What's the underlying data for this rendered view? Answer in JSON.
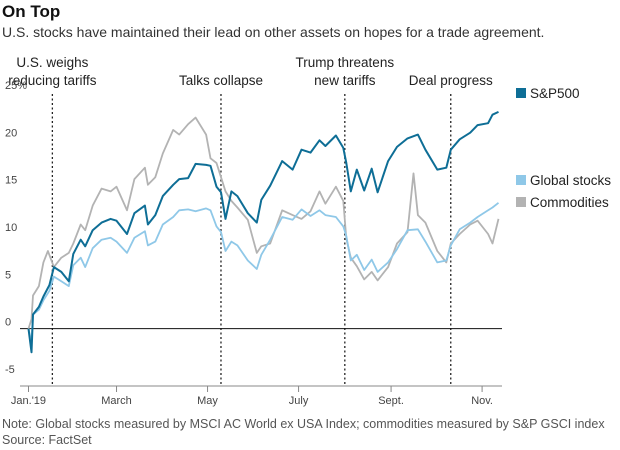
{
  "header": {
    "title": "On Top",
    "subtitle": "U.S. stocks have maintained their lead on other assets on hopes for a trade agreement."
  },
  "footer": {
    "note": "Note: Global stocks measured by MSCI AC World ex USA Index; commodities measured by S&P GSCI index",
    "source": "Source: FactSet"
  },
  "chart_data": {
    "type": "line",
    "ylabel": "",
    "xlabel": "",
    "y_unit": "%",
    "ylim": [
      -5,
      25
    ],
    "yticks": [
      -5,
      0,
      5,
      10,
      15,
      20,
      25
    ],
    "ytick_labels": [
      "-5",
      "0",
      "5",
      "10",
      "15",
      "20",
      "25%"
    ],
    "xlim": [
      "2018-12-31",
      "2019-11-13"
    ],
    "xticks": [
      {
        "date": "2019-01-01",
        "label": "Jan.'19"
      },
      {
        "date": "2019-03-01",
        "label": "March"
      },
      {
        "date": "2019-05-01",
        "label": "May"
      },
      {
        "date": "2019-07-01",
        "label": "July"
      },
      {
        "date": "2019-09-01",
        "label": "Sept."
      },
      {
        "date": "2019-11-01",
        "label": "Nov."
      }
    ],
    "grid": false,
    "zero_line": true,
    "annotations": [
      {
        "date": "2019-01-17",
        "lines": [
          "U.S. weighs",
          "reducing tariffs"
        ]
      },
      {
        "date": "2019-05-10",
        "lines": [
          "Talks collapse"
        ]
      },
      {
        "date": "2019-08-01",
        "lines": [
          "Trump threatens",
          "new tariffs"
        ]
      },
      {
        "date": "2019-10-11",
        "lines": [
          "Deal progress"
        ]
      }
    ],
    "legend_placement": "right",
    "series": [
      {
        "name": "S&P500",
        "color": "#0e6e96",
        "points": [
          [
            "2019-01-01",
            0
          ],
          [
            "2019-01-03",
            -2.5
          ],
          [
            "2019-01-04",
            1.5
          ],
          [
            "2019-01-08",
            2.3
          ],
          [
            "2019-01-11",
            3.4
          ],
          [
            "2019-01-15",
            4.6
          ],
          [
            "2019-01-18",
            6.5
          ],
          [
            "2019-01-23",
            6.0
          ],
          [
            "2019-01-28",
            5.0
          ],
          [
            "2019-01-31",
            7.9
          ],
          [
            "2019-02-05",
            9.4
          ],
          [
            "2019-02-08",
            8.7
          ],
          [
            "2019-02-13",
            10.4
          ],
          [
            "2019-02-19",
            11.2
          ],
          [
            "2019-02-25",
            11.6
          ],
          [
            "2019-03-01",
            11.4
          ],
          [
            "2019-03-08",
            10.0
          ],
          [
            "2019-03-13",
            12.2
          ],
          [
            "2019-03-20",
            13.0
          ],
          [
            "2019-03-22",
            11.0
          ],
          [
            "2019-03-27",
            12.0
          ],
          [
            "2019-04-01",
            14.0
          ],
          [
            "2019-04-08",
            15.2
          ],
          [
            "2019-04-12",
            15.8
          ],
          [
            "2019-04-18",
            15.9
          ],
          [
            "2019-04-23",
            17.4
          ],
          [
            "2019-04-30",
            17.3
          ],
          [
            "2019-05-03",
            17.2
          ],
          [
            "2019-05-07",
            15.0
          ],
          [
            "2019-05-10",
            14.4
          ],
          [
            "2019-05-13",
            11.6
          ],
          [
            "2019-05-17",
            14.5
          ],
          [
            "2019-05-21",
            14.0
          ],
          [
            "2019-05-28",
            12.2
          ],
          [
            "2019-06-03",
            11.2
          ],
          [
            "2019-06-06",
            13.6
          ],
          [
            "2019-06-12",
            15.1
          ],
          [
            "2019-06-20",
            17.7
          ],
          [
            "2019-06-27",
            16.8
          ],
          [
            "2019-07-03",
            18.9
          ],
          [
            "2019-07-09",
            18.6
          ],
          [
            "2019-07-15",
            19.9
          ],
          [
            "2019-07-19",
            19.3
          ],
          [
            "2019-07-26",
            20.4
          ],
          [
            "2019-07-31",
            19.1
          ],
          [
            "2019-08-02",
            17.5
          ],
          [
            "2019-08-05",
            14.5
          ],
          [
            "2019-08-09",
            16.8
          ],
          [
            "2019-08-14",
            14.6
          ],
          [
            "2019-08-19",
            16.9
          ],
          [
            "2019-08-23",
            14.4
          ],
          [
            "2019-08-30",
            17.7
          ],
          [
            "2019-09-05",
            19.2
          ],
          [
            "2019-09-12",
            20.1
          ],
          [
            "2019-09-19",
            20.5
          ],
          [
            "2019-09-24",
            18.9
          ],
          [
            "2019-10-02",
            16.8
          ],
          [
            "2019-10-08",
            17.0
          ],
          [
            "2019-10-11",
            18.9
          ],
          [
            "2019-10-17",
            20.0
          ],
          [
            "2019-10-24",
            20.7
          ],
          [
            "2019-10-29",
            21.5
          ],
          [
            "2019-11-05",
            21.7
          ],
          [
            "2019-11-08",
            22.6
          ],
          [
            "2019-11-12",
            22.9
          ]
        ]
      },
      {
        "name": "Global stocks",
        "color": "#8fc8e8",
        "points": [
          [
            "2019-01-01",
            0
          ],
          [
            "2019-01-03",
            -1.5
          ],
          [
            "2019-01-04",
            1.5
          ],
          [
            "2019-01-08",
            2.0
          ],
          [
            "2019-01-11",
            3.0
          ],
          [
            "2019-01-15",
            4.0
          ],
          [
            "2019-01-18",
            5.5
          ],
          [
            "2019-01-23",
            5.0
          ],
          [
            "2019-01-28",
            4.5
          ],
          [
            "2019-01-31",
            6.7
          ],
          [
            "2019-02-05",
            7.5
          ],
          [
            "2019-02-08",
            6.5
          ],
          [
            "2019-02-13",
            8.5
          ],
          [
            "2019-02-19",
            9.4
          ],
          [
            "2019-02-25",
            9.6
          ],
          [
            "2019-03-01",
            9.2
          ],
          [
            "2019-03-08",
            8.0
          ],
          [
            "2019-03-13",
            9.6
          ],
          [
            "2019-03-20",
            10.3
          ],
          [
            "2019-03-22",
            8.8
          ],
          [
            "2019-03-27",
            9.2
          ],
          [
            "2019-04-01",
            11.0
          ],
          [
            "2019-04-08",
            11.8
          ],
          [
            "2019-04-12",
            12.5
          ],
          [
            "2019-04-18",
            12.6
          ],
          [
            "2019-04-23",
            12.4
          ],
          [
            "2019-04-30",
            12.7
          ],
          [
            "2019-05-03",
            12.5
          ],
          [
            "2019-05-07",
            10.8
          ],
          [
            "2019-05-10",
            10.2
          ],
          [
            "2019-05-13",
            8.2
          ],
          [
            "2019-05-17",
            9.2
          ],
          [
            "2019-05-21",
            8.8
          ],
          [
            "2019-05-28",
            7.2
          ],
          [
            "2019-06-03",
            6.3
          ],
          [
            "2019-06-06",
            7.8
          ],
          [
            "2019-06-12",
            9.4
          ],
          [
            "2019-06-20",
            11.8
          ],
          [
            "2019-06-27",
            11.5
          ],
          [
            "2019-07-03",
            12.6
          ],
          [
            "2019-07-09",
            11.9
          ],
          [
            "2019-07-15",
            12.5
          ],
          [
            "2019-07-19",
            12.0
          ],
          [
            "2019-07-26",
            11.8
          ],
          [
            "2019-07-31",
            10.8
          ],
          [
            "2019-08-02",
            9.8
          ],
          [
            "2019-08-05",
            7.2
          ],
          [
            "2019-08-09",
            7.8
          ],
          [
            "2019-08-14",
            6.2
          ],
          [
            "2019-08-19",
            7.3
          ],
          [
            "2019-08-23",
            6.0
          ],
          [
            "2019-08-30",
            7.0
          ],
          [
            "2019-09-05",
            8.4
          ],
          [
            "2019-09-12",
            10.4
          ],
          [
            "2019-09-19",
            10.5
          ],
          [
            "2019-09-24",
            9.2
          ],
          [
            "2019-10-02",
            7.0
          ],
          [
            "2019-10-08",
            7.2
          ],
          [
            "2019-10-11",
            8.8
          ],
          [
            "2019-10-17",
            10.5
          ],
          [
            "2019-10-24",
            11.2
          ],
          [
            "2019-10-29",
            11.8
          ],
          [
            "2019-11-05",
            12.5
          ],
          [
            "2019-11-08",
            12.8
          ],
          [
            "2019-11-12",
            13.3
          ]
        ]
      },
      {
        "name": "Commodities",
        "color": "#b3b3b3",
        "points": [
          [
            "2019-01-01",
            0
          ],
          [
            "2019-01-03",
            1.0
          ],
          [
            "2019-01-04",
            3.5
          ],
          [
            "2019-01-08",
            4.5
          ],
          [
            "2019-01-11",
            7.0
          ],
          [
            "2019-01-14",
            8.2
          ],
          [
            "2019-01-18",
            6.5
          ],
          [
            "2019-01-23",
            7.5
          ],
          [
            "2019-01-28",
            8.0
          ],
          [
            "2019-01-31",
            9.0
          ],
          [
            "2019-02-05",
            11.0
          ],
          [
            "2019-02-08",
            10.4
          ],
          [
            "2019-02-13",
            13.0
          ],
          [
            "2019-02-19",
            14.8
          ],
          [
            "2019-02-25",
            14.5
          ],
          [
            "2019-03-01",
            15.0
          ],
          [
            "2019-03-08",
            12.5
          ],
          [
            "2019-03-13",
            15.8
          ],
          [
            "2019-03-20",
            17.0
          ],
          [
            "2019-03-22",
            15.2
          ],
          [
            "2019-03-27",
            16.0
          ],
          [
            "2019-04-01",
            18.5
          ],
          [
            "2019-04-08",
            21.0
          ],
          [
            "2019-04-12",
            20.5
          ],
          [
            "2019-04-18",
            21.6
          ],
          [
            "2019-04-23",
            22.3
          ],
          [
            "2019-04-30",
            20.5
          ],
          [
            "2019-05-03",
            18.0
          ],
          [
            "2019-05-07",
            17.5
          ],
          [
            "2019-05-10",
            16.0
          ],
          [
            "2019-05-13",
            14.5
          ],
          [
            "2019-05-17",
            13.5
          ],
          [
            "2019-05-21",
            12.8
          ],
          [
            "2019-05-28",
            11.5
          ],
          [
            "2019-06-03",
            8.0
          ],
          [
            "2019-06-06",
            8.7
          ],
          [
            "2019-06-12",
            9.0
          ],
          [
            "2019-06-20",
            12.5
          ],
          [
            "2019-06-27",
            12.0
          ],
          [
            "2019-07-03",
            11.6
          ],
          [
            "2019-07-09",
            12.4
          ],
          [
            "2019-07-15",
            14.5
          ],
          [
            "2019-07-19",
            13.2
          ],
          [
            "2019-07-26",
            15.0
          ],
          [
            "2019-07-31",
            13.5
          ],
          [
            "2019-08-02",
            9.5
          ],
          [
            "2019-08-05",
            7.5
          ],
          [
            "2019-08-09",
            6.6
          ],
          [
            "2019-08-14",
            5.2
          ],
          [
            "2019-08-19",
            6.0
          ],
          [
            "2019-08-23",
            5.1
          ],
          [
            "2019-08-30",
            6.5
          ],
          [
            "2019-09-05",
            9.0
          ],
          [
            "2019-09-12",
            10.2
          ],
          [
            "2019-09-16",
            16.4
          ],
          [
            "2019-09-19",
            12.0
          ],
          [
            "2019-09-24",
            11.2
          ],
          [
            "2019-10-02",
            8.2
          ],
          [
            "2019-10-08",
            7.0
          ],
          [
            "2019-10-11",
            9.0
          ],
          [
            "2019-10-17",
            10.0
          ],
          [
            "2019-10-24",
            11.0
          ],
          [
            "2019-10-29",
            11.4
          ],
          [
            "2019-11-05",
            10.0
          ],
          [
            "2019-11-08",
            9.0
          ],
          [
            "2019-11-12",
            11.6
          ]
        ]
      }
    ]
  }
}
